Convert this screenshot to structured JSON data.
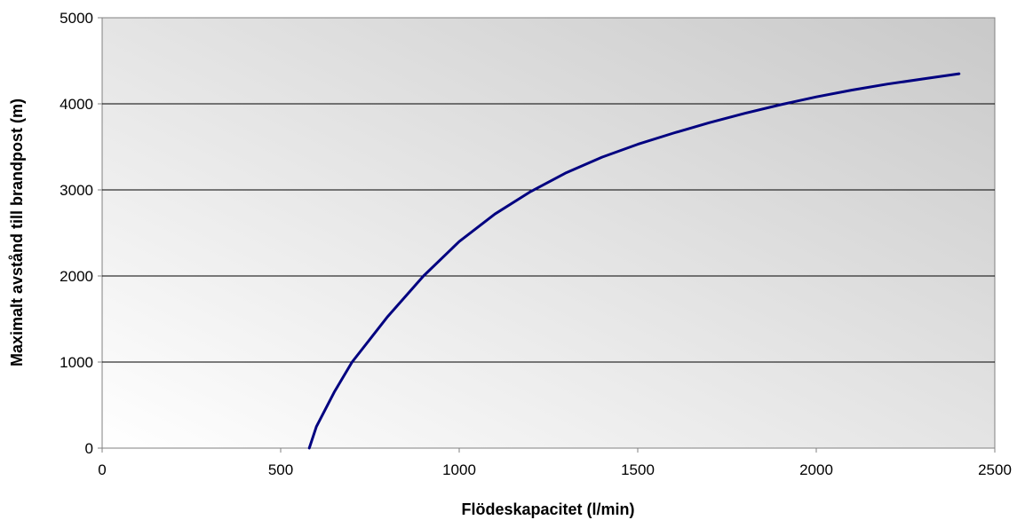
{
  "chart_data": {
    "type": "line",
    "title": "",
    "xlabel": "Flödeskapacitet (l/min)",
    "ylabel": "Maximalt avstånd till brandpost (m)",
    "xlim": [
      0,
      2500
    ],
    "ylim": [
      0,
      5000
    ],
    "x_ticks": [
      "0",
      "500",
      "1000",
      "1500",
      "2000",
      "2500"
    ],
    "y_ticks": [
      "0",
      "1000",
      "2000",
      "3000",
      "4000",
      "5000"
    ],
    "grid": "horizontal",
    "legend": "none",
    "background": "gradient grey-to-white",
    "line_color": "#000080",
    "series": [
      {
        "x": [
          580,
          600,
          650,
          700,
          800,
          900,
          1000,
          1100,
          1200,
          1300,
          1400,
          1500,
          1600,
          1700,
          1800,
          1900,
          2000,
          2100,
          2200,
          2300,
          2400
        ],
        "y": [
          0,
          250,
          650,
          1000,
          1530,
          2000,
          2400,
          2720,
          2980,
          3200,
          3380,
          3530,
          3660,
          3780,
          3890,
          3990,
          4080,
          4160,
          4230,
          4290,
          4350
        ]
      }
    ]
  }
}
